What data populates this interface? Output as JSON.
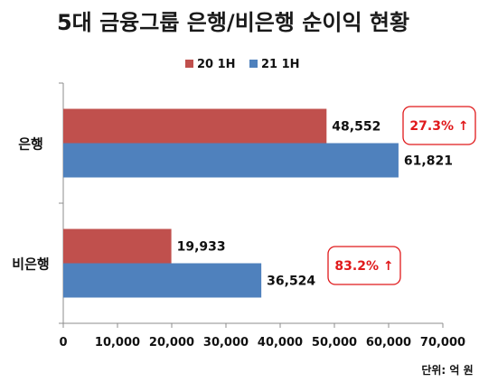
{
  "chart_data": {
    "type": "bar",
    "orientation": "horizontal",
    "title": "5대 금융그룹 은행/비은행 순이익 현황",
    "categories": [
      "은행",
      "비은행"
    ],
    "series": [
      {
        "name": "20 1H",
        "values": [
          48552,
          19933
        ],
        "color": "#c0504d"
      },
      {
        "name": "21 1H",
        "values": [
          61821,
          36524
        ],
        "color": "#4f81bd"
      }
    ],
    "data_labels": {
      "20 1H": [
        "48,552",
        "19,933"
      ],
      "21 1H": [
        "61,821",
        "36,524"
      ]
    },
    "xlim": [
      0,
      70000
    ],
    "x_ticks": [
      "0",
      "10,000",
      "20,000",
      "30,000",
      "40,000",
      "50,000",
      "60,000",
      "70,000"
    ],
    "legend": "top-center",
    "grid": false,
    "annotations": [
      "27.3% ↑",
      "83.2% ↑"
    ],
    "annotation_color": "#e0191b",
    "unit_note": "단위: 억 원"
  }
}
